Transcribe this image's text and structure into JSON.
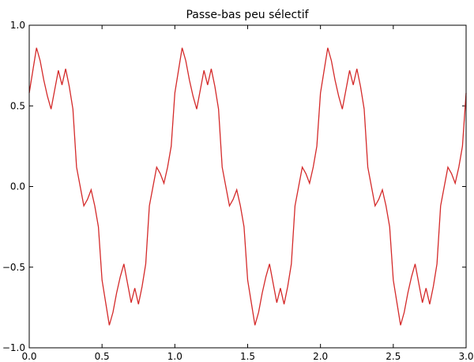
{
  "chart_data": {
    "type": "line",
    "title": "Passe-bas peu sélectif",
    "x": [
      0,
      0.025,
      0.05,
      0.075,
      0.1,
      0.125,
      0.15,
      0.175,
      0.2,
      0.225,
      0.25,
      0.275,
      0.3,
      0.325,
      0.35,
      0.375,
      0.4,
      0.425,
      0.45,
      0.475,
      0.5,
      0.525,
      0.55,
      0.575,
      0.6,
      0.625,
      0.65,
      0.675,
      0.7,
      0.725,
      0.75,
      0.775,
      0.8,
      0.825,
      0.85,
      0.875,
      0.9,
      0.925,
      0.95,
      0.975,
      1,
      1.025,
      1.05,
      1.075,
      1.1,
      1.125,
      1.15,
      1.175,
      1.2,
      1.225,
      1.25,
      1.275,
      1.3,
      1.325,
      1.35,
      1.375,
      1.4,
      1.425,
      1.45,
      1.475,
      1.5,
      1.525,
      1.55,
      1.575,
      1.6,
      1.625,
      1.65,
      1.675,
      1.7,
      1.725,
      1.75,
      1.775,
      1.8,
      1.825,
      1.85,
      1.875,
      1.9,
      1.925,
      1.95,
      1.975,
      2,
      2.025,
      2.05,
      2.075,
      2.1,
      2.125,
      2.15,
      2.175,
      2.2,
      2.225,
      2.25,
      2.275,
      2.3,
      2.325,
      2.35,
      2.375,
      2.4,
      2.425,
      2.45,
      2.475,
      2.5,
      2.525,
      2.55,
      2.575,
      2.6,
      2.625,
      2.65,
      2.675,
      2.7,
      2.725,
      2.75,
      2.775,
      2.8,
      2.825,
      2.85,
      2.875,
      2.9,
      2.925,
      2.95,
      2.975,
      3
    ],
    "series": [
      {
        "color": "#d42a2a",
        "values": [
          0.58,
          0.72,
          0.86,
          0.78,
          0.66,
          0.56,
          0.48,
          0.6,
          0.72,
          0.63,
          0.73,
          0.62,
          0.48,
          0.12,
          0,
          -0.12,
          -0.08,
          -0.02,
          -0.12,
          -0.25,
          -0.58,
          -0.72,
          -0.86,
          -0.78,
          -0.66,
          -0.56,
          -0.48,
          -0.6,
          -0.72,
          -0.63,
          -0.73,
          -0.62,
          -0.48,
          -0.12,
          0,
          0.12,
          0.08,
          0.02,
          0.12,
          0.25,
          0.58,
          0.72,
          0.86,
          0.78,
          0.66,
          0.56,
          0.48,
          0.6,
          0.72,
          0.63,
          0.73,
          0.62,
          0.48,
          0.12,
          0,
          -0.12,
          -0.08,
          -0.02,
          -0.12,
          -0.25,
          -0.58,
          -0.72,
          -0.86,
          -0.78,
          -0.66,
          -0.56,
          -0.48,
          -0.6,
          -0.72,
          -0.63,
          -0.73,
          -0.62,
          -0.48,
          -0.12,
          0,
          0.12,
          0.08,
          0.02,
          0.12,
          0.25,
          0.58,
          0.72,
          0.86,
          0.78,
          0.66,
          0.56,
          0.48,
          0.6,
          0.72,
          0.63,
          0.73,
          0.62,
          0.48,
          0.12,
          0,
          -0.12,
          -0.08,
          -0.02,
          -0.12,
          -0.25,
          -0.58,
          -0.72,
          -0.86,
          -0.78,
          -0.66,
          -0.56,
          -0.48,
          -0.6,
          -0.72,
          -0.63,
          -0.73,
          -0.62,
          -0.48,
          -0.12,
          0,
          0.12,
          0.08,
          0.02,
          0.12,
          0.25,
          0.58
        ]
      }
    ],
    "xlim": [
      0,
      3
    ],
    "ylim": [
      -1,
      1
    ],
    "xticks": [
      {
        "value": 0,
        "label": "0.0"
      },
      0.5,
      {
        "value": 1,
        "label": "1.0"
      },
      1.5,
      {
        "value": 2,
        "label": "2.0"
      },
      2.5,
      {
        "value": 3,
        "label": "3.0"
      }
    ],
    "yticks": [
      {
        "value": -1,
        "label": "−1.0"
      },
      {
        "value": -0.5,
        "label": "−0.5"
      },
      {
        "value": 0,
        "label": "0.0"
      },
      0.5,
      {
        "value": 1,
        "label": "1.0"
      }
    ],
    "grid": false
  }
}
